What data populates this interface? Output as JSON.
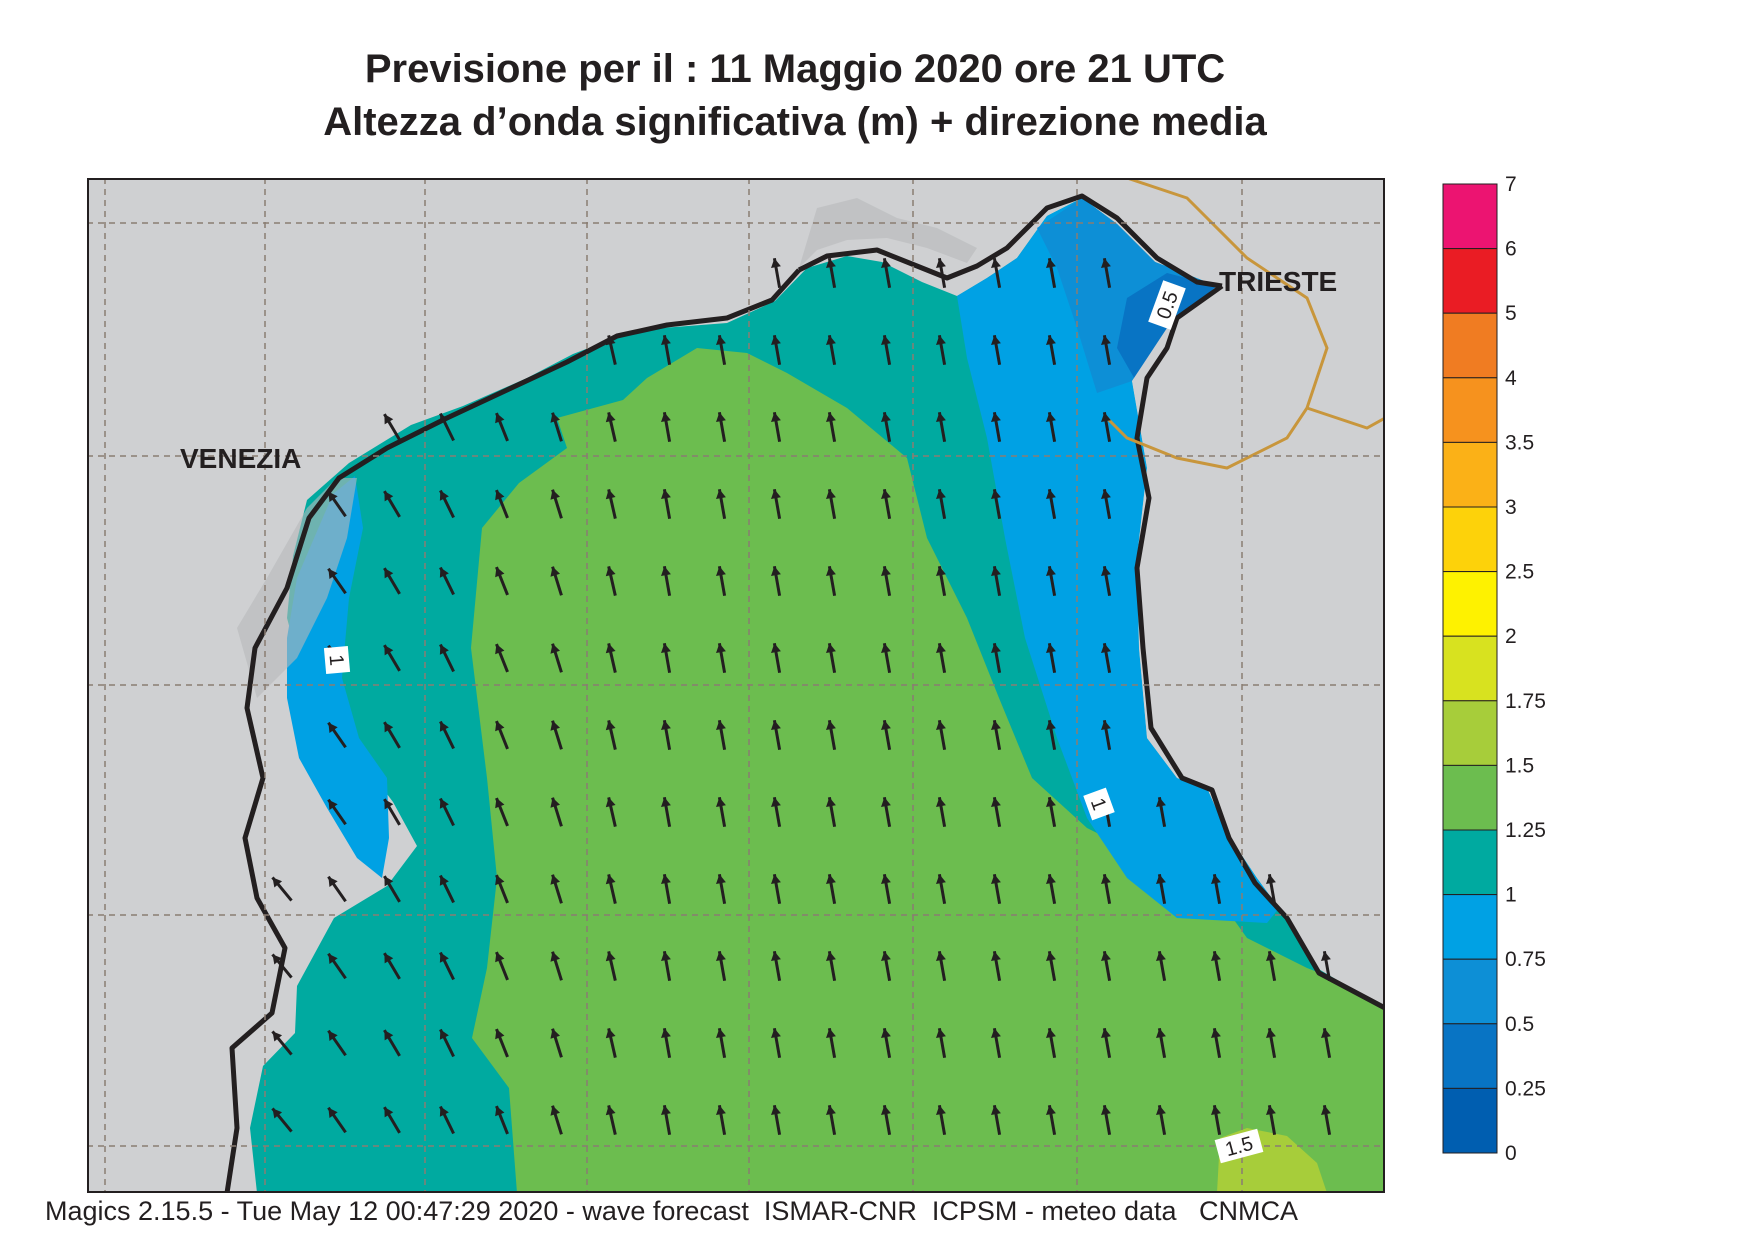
{
  "header": {
    "line1": "Previsione per il  :  11   Maggio  2020   ore 21 UTC",
    "line2": "Altezza d’onda significativa (m) + direzione media"
  },
  "map": {
    "place_labels": [
      "VENEZIA",
      "TRIESTE"
    ],
    "contour_labels": [
      "1",
      "1",
      "0.5",
      "1.5"
    ],
    "mean_wave_direction": "from south-east (arrows pointing north / north-west)",
    "colors": {
      "land": "#cfd0d2",
      "coast": "#231f20",
      "border": "#c8963c"
    }
  },
  "colorbar": {
    "ticks": [
      "7",
      "6",
      "5",
      "4",
      "3.5",
      "3",
      "2.5",
      "2",
      "1.75",
      "1.5",
      "1.25",
      "1",
      "0.75",
      "0.5",
      "0.25",
      "0"
    ],
    "bands": [
      {
        "from": "6",
        "to": "7",
        "color": "#ec1471"
      },
      {
        "from": "5",
        "to": "6",
        "color": "#ea1c24"
      },
      {
        "from": "4",
        "to": "5",
        "color": "#f07c22"
      },
      {
        "from": "3.5",
        "to": "4",
        "color": "#f6921e"
      },
      {
        "from": "3",
        "to": "3.5",
        "color": "#fbb117"
      },
      {
        "from": "2.5",
        "to": "3",
        "color": "#fdd20a"
      },
      {
        "from": "2",
        "to": "2.5",
        "color": "#fef200"
      },
      {
        "from": "1.75",
        "to": "2",
        "color": "#d8e21f"
      },
      {
        "from": "1.5",
        "to": "1.75",
        "color": "#a7cd3a"
      },
      {
        "from": "1.25",
        "to": "1.5",
        "color": "#6cbd4f"
      },
      {
        "from": "1",
        "to": "1.25",
        "color": "#00aaa0"
      },
      {
        "from": "0.75",
        "to": "1",
        "color": "#00a1e4"
      },
      {
        "from": "0.5",
        "to": "0.75",
        "color": "#0d8fd6"
      },
      {
        "from": "0.25",
        "to": "0.5",
        "color": "#0874c4"
      },
      {
        "from": "0",
        "to": "0.25",
        "color": "#005eb0"
      }
    ]
  },
  "footer": {
    "text": "Magics 2.15.5 - Tue May 12 00:47:29 2020 - wave forecast  ISMAR-CNR  ICPSM - meteo data   CNMCA"
  }
}
